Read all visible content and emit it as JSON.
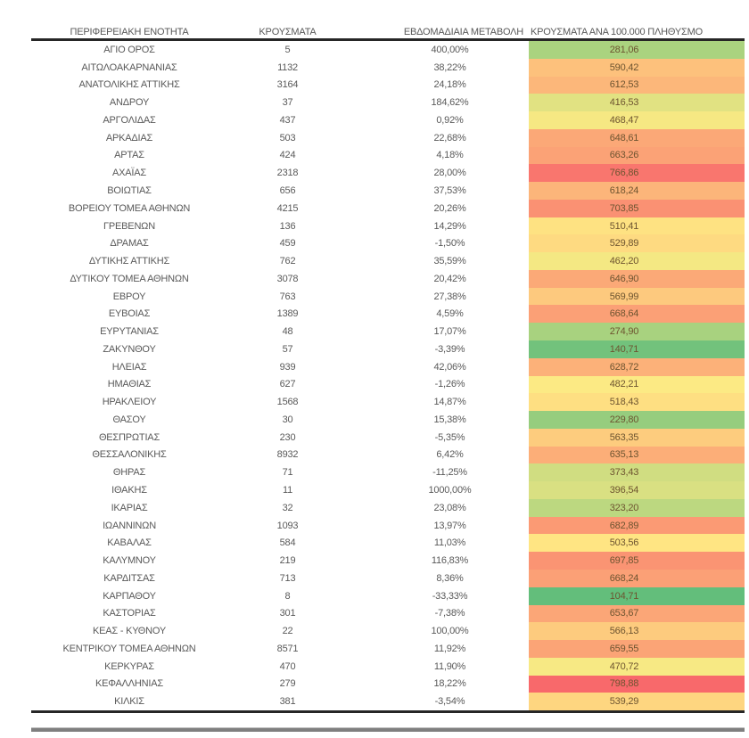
{
  "chart_data": {
    "type": "table",
    "columns": [
      "ΠΕΡΙΦΕΡΕΙΑΚΗ ΕΝΟΤΗΤΑ",
      "ΚΡΟΥΣΜΑΤΑ",
      "ΕΒΔΟΜΑΔΙΑΙΑ ΜΕΤΑΒΟΛΗ",
      "ΚΡΟΥΣΜΑΤΑ ΑΝΑ 100.000 ΠΛΗΘΥΣΜΟ"
    ],
    "heat_scale": {
      "applies_to_column": "ΚΡΟΥΣΜΑΤΑ ΑΝΑ 100.000 ΠΛΗΘΥΣΜΟ",
      "min_color": "#63BE7B",
      "mid_color": "#FFEB84",
      "max_color": "#F8696B",
      "visible_min": 104.71,
      "visible_max": 798.88
    },
    "rows": [
      {
        "region": "ΑΓΙΟ ΟΡΟΣ",
        "cases": "5",
        "weekly_change": "400,00%",
        "per_100k": "281,06",
        "heat_color": "#AAD37F"
      },
      {
        "region": "ΑΙΤΩΛΟΑΚΑΡΝΑΝΙΑΣ",
        "cases": "1132",
        "weekly_change": "38,22%",
        "per_100k": "590,42",
        "heat_color": "#FDC17C"
      },
      {
        "region": "ΑΝΑΤΟΛΙΚΗΣ ΑΤΤΙΚΗΣ",
        "cases": "3164",
        "weekly_change": "24,18%",
        "per_100k": "612,53",
        "heat_color": "#FCB77A"
      },
      {
        "region": "ΑΝΔΡΟΥ",
        "cases": "37",
        "weekly_change": "184,62%",
        "per_100k": "416,53",
        "heat_color": "#E1E282"
      },
      {
        "region": "ΑΡΓΟΛΙΔΑΣ",
        "cases": "437",
        "weekly_change": "0,92%",
        "per_100k": "468,47",
        "heat_color": "#F6E883"
      },
      {
        "region": "ΑΡΚΑΔΙΑΣ",
        "cases": "503",
        "weekly_change": "22,68%",
        "per_100k": "648,61",
        "heat_color": "#FBA877"
      },
      {
        "region": "ΑΡΤΑΣ",
        "cases": "424",
        "weekly_change": "4,18%",
        "per_100k": "663,26",
        "heat_color": "#FBA276"
      },
      {
        "region": "ΑΧΑΪΑΣ",
        "cases": "2318",
        "weekly_change": "28,00%",
        "per_100k": "766,86",
        "heat_color": "#F9766E"
      },
      {
        "region": "ΒΟΙΩΤΙΑΣ",
        "cases": "656",
        "weekly_change": "37,53%",
        "per_100k": "618,24",
        "heat_color": "#FCB57A"
      },
      {
        "region": "ΒΟΡΕΙΟΥ ΤΟΜΕΑ ΑΘΗΝΩΝ",
        "cases": "4215",
        "weekly_change": "20,26%",
        "per_100k": "703,85",
        "heat_color": "#FA9173"
      },
      {
        "region": "ΓΡΕΒΕΝΩΝ",
        "cases": "136",
        "weekly_change": "14,29%",
        "per_100k": "510,41",
        "heat_color": "#FEE282"
      },
      {
        "region": "ΔΡΑΜΑΣ",
        "cases": "459",
        "weekly_change": "-1,50%",
        "per_100k": "529,89",
        "heat_color": "#FEDA81"
      },
      {
        "region": "ΔΥΤΙΚΗΣ ΑΤΤΙΚΗΣ",
        "cases": "762",
        "weekly_change": "35,59%",
        "per_100k": "462,20",
        "heat_color": "#F4E883"
      },
      {
        "region": "ΔΥΤΙΚΟΥ ΤΟΜΕΑ ΑΘΗΝΩΝ",
        "cases": "3078",
        "weekly_change": "20,42%",
        "per_100k": "646,90",
        "heat_color": "#FBA977"
      },
      {
        "region": "ΕΒΡΟΥ",
        "cases": "763",
        "weekly_change": "27,38%",
        "per_100k": "569,99",
        "heat_color": "#FDC97E"
      },
      {
        "region": "ΕΥΒΟΙΑΣ",
        "cases": "1389",
        "weekly_change": "4,59%",
        "per_100k": "668,64",
        "heat_color": "#FBA076"
      },
      {
        "region": "ΕΥΡΥΤΑΝΙΑΣ",
        "cases": "48",
        "weekly_change": "17,07%",
        "per_100k": "274,90",
        "heat_color": "#A8D27F"
      },
      {
        "region": "ΖΑΚΥΝΘΟΥ",
        "cases": "57",
        "weekly_change": "-3,39%",
        "per_100k": "140,71",
        "heat_color": "#72C27C"
      },
      {
        "region": "ΗΛΕΙΑΣ",
        "cases": "939",
        "weekly_change": "42,06%",
        "per_100k": "628,72",
        "heat_color": "#FCB179"
      },
      {
        "region": "ΗΜΑΘΙΑΣ",
        "cases": "627",
        "weekly_change": "-1,26%",
        "per_100k": "482,21",
        "heat_color": "#FCEA84"
      },
      {
        "region": "ΗΡΑΚΛΕΙΟΥ",
        "cases": "1568",
        "weekly_change": "14,87%",
        "per_100k": "518,43",
        "heat_color": "#FEDF82"
      },
      {
        "region": "ΘΑΣΟΥ",
        "cases": "30",
        "weekly_change": "15,38%",
        "per_100k": "229,80",
        "heat_color": "#96CD7E"
      },
      {
        "region": "ΘΕΣΠΡΩΤΙΑΣ",
        "cases": "230",
        "weekly_change": "-5,35%",
        "per_100k": "563,35",
        "heat_color": "#FDCC7E"
      },
      {
        "region": "ΘΕΣΣΑΛΟΝΙΚΗΣ",
        "cases": "8932",
        "weekly_change": "6,42%",
        "per_100k": "635,13",
        "heat_color": "#FCAE78"
      },
      {
        "region": "ΘΗΡΑΣ",
        "cases": "71",
        "weekly_change": "-11,25%",
        "per_100k": "373,43",
        "heat_color": "#D0DD81"
      },
      {
        "region": "ΙΘΑΚΗΣ",
        "cases": "11",
        "weekly_change": "1000,00%",
        "per_100k": "396,54",
        "heat_color": "#D9E082"
      },
      {
        "region": "ΙΚΑΡΙΑΣ",
        "cases": "32",
        "weekly_change": "23,08%",
        "per_100k": "323,20",
        "heat_color": "#BCD880"
      },
      {
        "region": "ΙΩΑΝΝΙΝΩΝ",
        "cases": "1093",
        "weekly_change": "13,97%",
        "per_100k": "682,89",
        "heat_color": "#FB9A74"
      },
      {
        "region": "ΚΑΒΑΛΑΣ",
        "cases": "584",
        "weekly_change": "11,03%",
        "per_100k": "503,56",
        "heat_color": "#FFE583"
      },
      {
        "region": "ΚΑΛΥΜΝΟΥ",
        "cases": "219",
        "weekly_change": "116,83%",
        "per_100k": "697,85",
        "heat_color": "#FA9473"
      },
      {
        "region": "ΚΑΡΔΙΤΣΑΣ",
        "cases": "713",
        "weekly_change": "8,36%",
        "per_100k": "668,24",
        "heat_color": "#FBA076"
      },
      {
        "region": "ΚΑΡΠΑΘΟΥ",
        "cases": "8",
        "weekly_change": "-33,33%",
        "per_100k": "104,71",
        "heat_color": "#63BE7B"
      },
      {
        "region": "ΚΑΣΤΟΡΙΑΣ",
        "cases": "301",
        "weekly_change": "-7,38%",
        "per_100k": "653,67",
        "heat_color": "#FBA677"
      },
      {
        "region": "ΚΕΑΣ - ΚΥΘΝΟΥ",
        "cases": "22",
        "weekly_change": "100,00%",
        "per_100k": "566,13",
        "heat_color": "#FDCB7E"
      },
      {
        "region": "ΚΕΝΤΡΙΚΟΥ ΤΟΜΕΑ ΑΘΗΝΩΝ",
        "cases": "8571",
        "weekly_change": "11,92%",
        "per_100k": "659,55",
        "heat_color": "#FBA476"
      },
      {
        "region": "ΚΕΡΚΥΡΑΣ",
        "cases": "470",
        "weekly_change": "11,90%",
        "per_100k": "470,72",
        "heat_color": "#F7E984"
      },
      {
        "region": "ΚΕΦΑΛΛΗΝΙΑΣ",
        "cases": "279",
        "weekly_change": "18,22%",
        "per_100k": "798,88",
        "heat_color": "#F8696B"
      },
      {
        "region": "ΚΙΛΚΙΣ",
        "cases": "381",
        "weekly_change": "-3,54%",
        "per_100k": "539,29",
        "heat_color": "#FED680"
      }
    ]
  },
  "colors": {
    "header_rule": "#262626",
    "table_text": "#595959",
    "heat_cell_text": "#6d5430",
    "bottom_bar": "#7f7f7f"
  }
}
